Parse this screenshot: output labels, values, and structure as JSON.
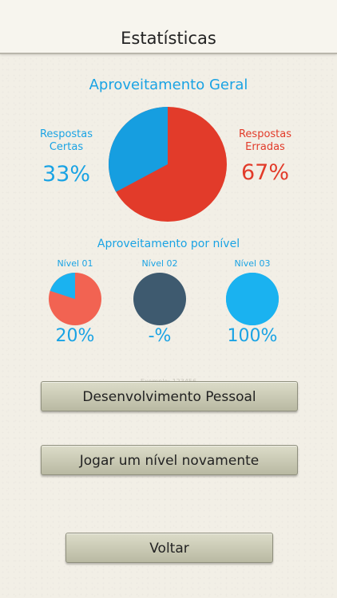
{
  "header": {
    "title": "Estatísticas"
  },
  "general": {
    "title": "Aproveitamento Geral",
    "correct_label_line1": "Respostas",
    "correct_label_line2": "Certas",
    "correct_pct": "33%",
    "wrong_label_line1": "Respostas",
    "wrong_label_line2": "Erradas",
    "wrong_pct": "67%",
    "correct_fraction": 0.33
  },
  "levels": {
    "title": "Aproveitamento por nível",
    "items": [
      {
        "label": "Nível 01",
        "pct": "20%",
        "correct_fraction": 0.2,
        "color": "#f26352"
      },
      {
        "label": "Nível 02",
        "pct": "-%",
        "correct_fraction": null,
        "color": "#3e5a6f"
      },
      {
        "label": "Nível 03",
        "pct": "100%",
        "correct_fraction": 1.0,
        "color": "#1ab2f0"
      }
    ]
  },
  "ghost_text": "Exemplo: 123456",
  "buttons": {
    "personal": "Desenvolvimento Pessoal",
    "replay": "Jogar um nível novamente",
    "back": "Voltar"
  },
  "colors": {
    "blue": "#1aa3e4",
    "red": "#e23b2a",
    "level_blue": "#1ab2f0"
  }
}
